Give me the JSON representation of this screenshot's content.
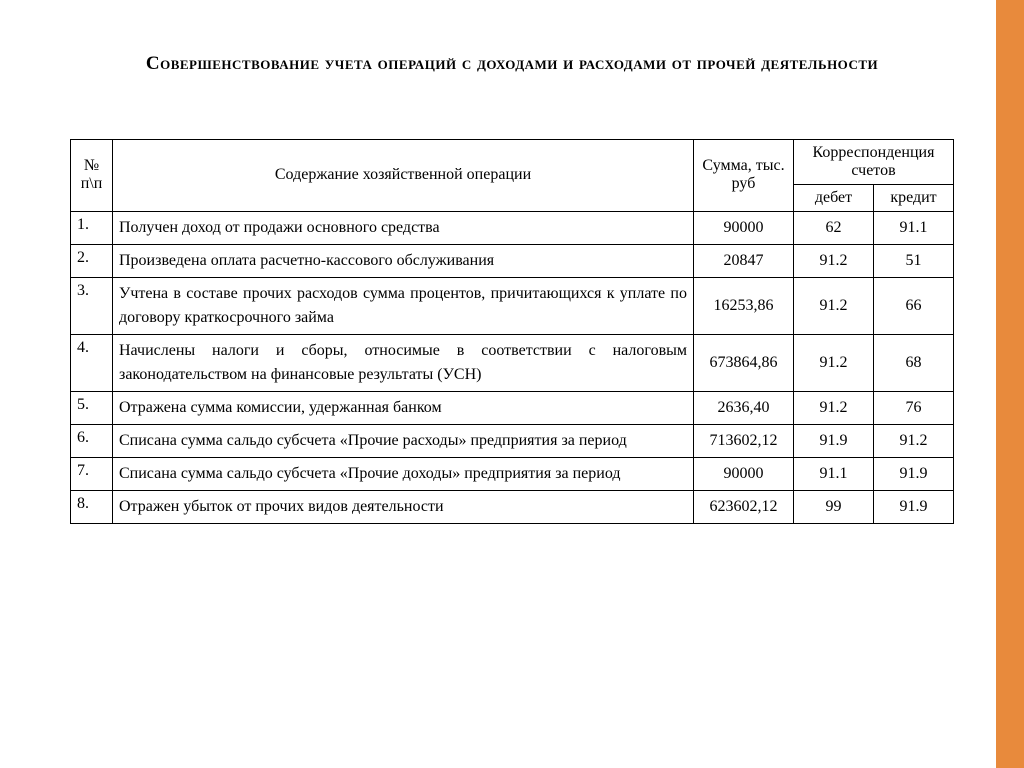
{
  "title": "Совершенствование учета операций с доходами и расходами от прочей деятельности",
  "accent_color": "#e88a3c",
  "background_color": "#ffffff",
  "text_color": "#000000",
  "border_color": "#000000",
  "title_fontsize": 19,
  "body_fontsize": 16,
  "table": {
    "type": "table",
    "columns": {
      "num": "№ п\\п",
      "description": "Содержание хозяйственной операции",
      "sum": "Сумма, тыс. руб",
      "correspondence": "Корреспонденция счетов",
      "debit": "дебет",
      "credit": "кредит"
    },
    "col_widths": {
      "num": 42,
      "sum": 100,
      "debit": 80,
      "credit": 80
    },
    "rows": [
      {
        "num": "1.",
        "desc": "Получен доход от продажи основного средства",
        "sum": "90000",
        "debit": "62",
        "credit": "91.1"
      },
      {
        "num": "2.",
        "desc": "Произведена оплата расчетно-кассового обслуживания",
        "sum": "20847",
        "debit": "91.2",
        "credit": "51"
      },
      {
        "num": "3.",
        "desc": "Учтена в составе прочих расходов сумма процентов, причитающихся к уплате по договору краткосрочного займа",
        "sum": "16253,86",
        "debit": "91.2",
        "credit": "66"
      },
      {
        "num": "4.",
        "desc": "Начислены налоги и сборы, относимые в соответствии с налоговым законодательством на финансовые результаты (УСН)",
        "sum": "673864,86",
        "debit": "91.2",
        "credit": "68"
      },
      {
        "num": "5.",
        "desc": "Отражена сумма комиссии, удержанная банком",
        "sum": "2636,40",
        "debit": "91.2",
        "credit": "76"
      },
      {
        "num": "6.",
        "desc": "Списана сумма сальдо субсчета «Прочие расходы» предприятия за период",
        "sum": "713602,12",
        "debit": "91.9",
        "credit": "91.2"
      },
      {
        "num": "7.",
        "desc": "Списана сумма сальдо субсчета «Прочие доходы» предприятия за период",
        "sum": "90000",
        "debit": "91.1",
        "credit": "91.9"
      },
      {
        "num": "8.",
        "desc": "Отражен убыток от прочих видов деятельности",
        "sum": "623602,12",
        "debit": "99",
        "credit": "91.9"
      }
    ]
  }
}
